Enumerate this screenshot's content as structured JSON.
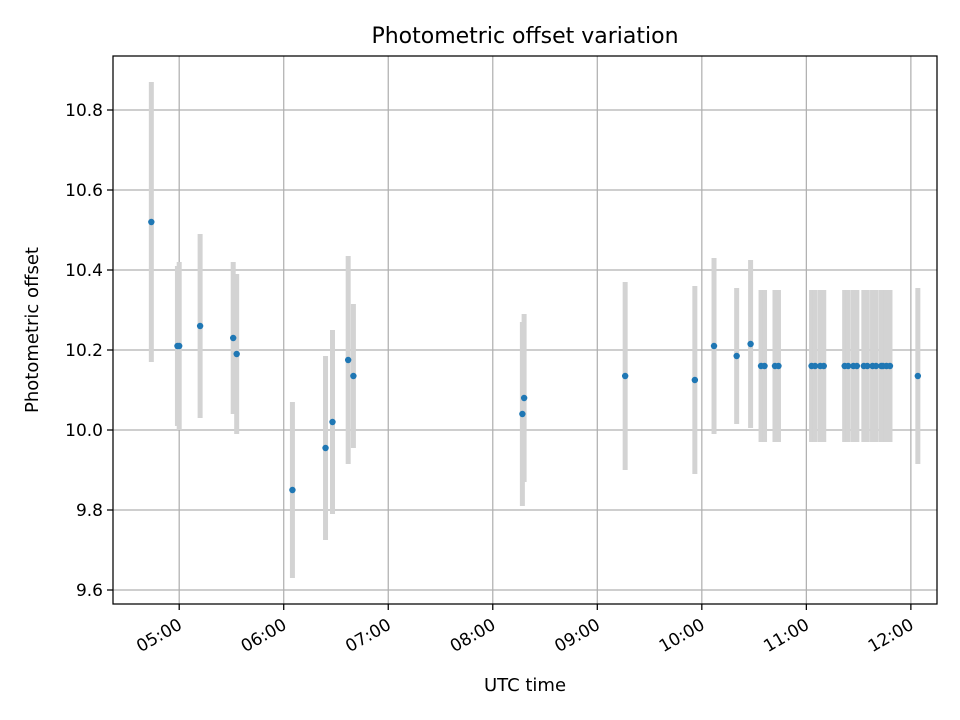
{
  "chart_data": {
    "type": "scatter",
    "title": "Photometric offset variation",
    "xlabel": "UTC time",
    "ylabel": "Photometric offset",
    "xlim": [
      "04:22",
      "12:15"
    ],
    "ylim": [
      9.565,
      10.935
    ],
    "x_ticks": [
      "05:00",
      "06:00",
      "07:00",
      "08:00",
      "09:00",
      "10:00",
      "11:00",
      "12:00"
    ],
    "y_ticks": [
      "9.6",
      "9.8",
      "10.0",
      "10.2",
      "10.4",
      "10.6",
      "10.8"
    ],
    "grid": true,
    "legend": "none",
    "colors": {
      "point": "#1f77b4",
      "errorbar": "#d3d3d3",
      "grid": "#b0b0b0"
    },
    "series": [
      {
        "points": [
          {
            "x": "04:44",
            "y": 10.52,
            "yerr": 0.35
          },
          {
            "x": "04:59",
            "y": 10.21,
            "yerr": 0.2
          },
          {
            "x": "05:00",
            "y": 10.21,
            "yerr": 0.21
          },
          {
            "x": "05:12",
            "y": 10.26,
            "yerr": 0.23
          },
          {
            "x": "05:31",
            "y": 10.23,
            "yerr": 0.19
          },
          {
            "x": "05:33",
            "y": 10.19,
            "yerr": 0.2
          },
          {
            "x": "06:05",
            "y": 9.85,
            "yerr": 0.22
          },
          {
            "x": "06:24",
            "y": 9.955,
            "yerr": 0.23
          },
          {
            "x": "06:28",
            "y": 10.02,
            "yerr": 0.23
          },
          {
            "x": "06:37",
            "y": 10.175,
            "yerr": 0.26
          },
          {
            "x": "06:40",
            "y": 10.135,
            "yerr": 0.18
          },
          {
            "x": "08:17",
            "y": 10.04,
            "yerr": 0.23
          },
          {
            "x": "08:18",
            "y": 10.08,
            "yerr": 0.21
          },
          {
            "x": "09:16",
            "y": 10.135,
            "yerr": 0.235
          },
          {
            "x": "09:56",
            "y": 10.125,
            "yerr": 0.235
          },
          {
            "x": "10:07",
            "y": 10.21,
            "yerr": 0.22
          },
          {
            "x": "10:20",
            "y": 10.185,
            "yerr": 0.17
          },
          {
            "x": "10:28",
            "y": 10.215,
            "yerr": 0.21
          },
          {
            "x": "10:34",
            "y": 10.16,
            "yerr": 0.19
          },
          {
            "x": "10:36",
            "y": 10.16,
            "yerr": 0.19
          },
          {
            "x": "10:42",
            "y": 10.16,
            "yerr": 0.19
          },
          {
            "x": "10:44",
            "y": 10.16,
            "yerr": 0.19
          },
          {
            "x": "11:03",
            "y": 10.16,
            "yerr": 0.19
          },
          {
            "x": "11:05",
            "y": 10.16,
            "yerr": 0.19
          },
          {
            "x": "11:08",
            "y": 10.16,
            "yerr": 0.19
          },
          {
            "x": "11:10",
            "y": 10.16,
            "yerr": 0.19
          },
          {
            "x": "11:22",
            "y": 10.16,
            "yerr": 0.19
          },
          {
            "x": "11:24",
            "y": 10.16,
            "yerr": 0.19
          },
          {
            "x": "11:27",
            "y": 10.16,
            "yerr": 0.19
          },
          {
            "x": "11:29",
            "y": 10.16,
            "yerr": 0.19
          },
          {
            "x": "11:33",
            "y": 10.16,
            "yerr": 0.19
          },
          {
            "x": "11:35",
            "y": 10.16,
            "yerr": 0.19
          },
          {
            "x": "11:38",
            "y": 10.16,
            "yerr": 0.19
          },
          {
            "x": "11:40",
            "y": 10.16,
            "yerr": 0.19
          },
          {
            "x": "11:43",
            "y": 10.16,
            "yerr": 0.19
          },
          {
            "x": "11:44",
            "y": 10.16,
            "yerr": 0.19
          },
          {
            "x": "11:46",
            "y": 10.16,
            "yerr": 0.19
          },
          {
            "x": "11:48",
            "y": 10.16,
            "yerr": 0.19
          },
          {
            "x": "12:04",
            "y": 10.135,
            "yerr": 0.22
          }
        ]
      }
    ]
  }
}
